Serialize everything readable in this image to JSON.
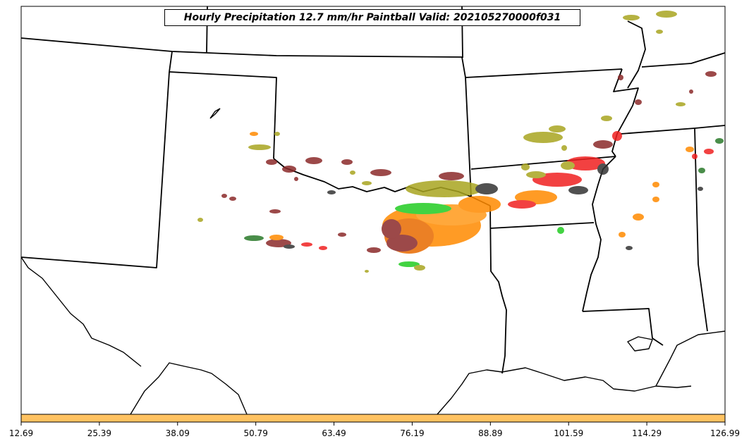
{
  "title": "Hourly Precipitation 12.7 mm/hr Paintball Valid: 202105270000f031",
  "colorbar": {
    "color": "#ffc261",
    "ticks": [
      "12.69",
      "25.39",
      "38.09",
      "50.79",
      "63.49",
      "76.19",
      "88.89",
      "101.59",
      "114.29",
      "126.99"
    ]
  },
  "colors": {
    "olive": "#a9a521",
    "brown": "#8b2a2a",
    "red": "#f02020",
    "orange": "#ff8a00",
    "green": "#22cc22",
    "dark_green": "#2a7a2a",
    "dark": "#333333"
  }
}
